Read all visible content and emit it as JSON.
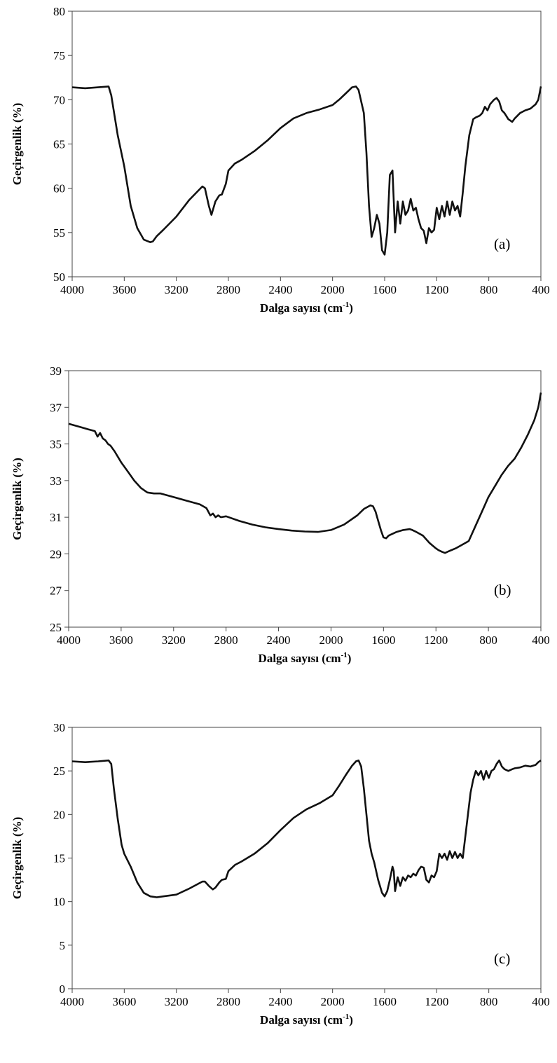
{
  "chart_data": [
    {
      "type": "line",
      "panel_label": "(a)",
      "xlabel": "Dalga sayısı (cm",
      "xlabel_sup": "-1",
      "xlabel_end": ")",
      "ylabel": "Geçirgenlik (%)",
      "xlim": [
        4000,
        400
      ],
      "ylim": [
        50,
        80
      ],
      "xticks": [
        4000,
        3600,
        3200,
        2800,
        2400,
        2000,
        1600,
        1200,
        800,
        400
      ],
      "yticks": [
        50,
        55,
        60,
        65,
        70,
        75,
        80
      ],
      "grid": false,
      "series": [
        {
          "color": "#111111",
          "x": [
            4000,
            3900,
            3800,
            3720,
            3700,
            3650,
            3600,
            3550,
            3500,
            3450,
            3400,
            3380,
            3350,
            3300,
            3200,
            3100,
            3000,
            2980,
            2950,
            2930,
            2900,
            2870,
            2850,
            2820,
            2800,
            2750,
            2700,
            2600,
            2500,
            2400,
            2300,
            2200,
            2100,
            2000,
            1950,
            1900,
            1850,
            1820,
            1800,
            1760,
            1740,
            1720,
            1700,
            1680,
            1660,
            1640,
            1620,
            1600,
            1580,
            1560,
            1540,
            1520,
            1500,
            1480,
            1460,
            1440,
            1420,
            1400,
            1380,
            1360,
            1340,
            1320,
            1300,
            1280,
            1260,
            1240,
            1220,
            1200,
            1180,
            1160,
            1140,
            1120,
            1100,
            1080,
            1060,
            1040,
            1020,
            1000,
            980,
            950,
            920,
            900,
            870,
            850,
            830,
            810,
            790,
            760,
            740,
            720,
            700,
            680,
            650,
            620,
            600,
            560,
            520,
            480,
            440,
            420,
            400
          ],
          "y": [
            71.4,
            71.3,
            71.4,
            71.5,
            70.5,
            66.0,
            62.5,
            58.0,
            55.5,
            54.2,
            53.9,
            54.0,
            54.6,
            55.3,
            56.8,
            58.7,
            60.2,
            60.0,
            58.0,
            57.0,
            58.5,
            59.2,
            59.3,
            60.5,
            62.0,
            62.8,
            63.2,
            64.2,
            65.4,
            66.8,
            67.9,
            68.5,
            68.9,
            69.4,
            70.0,
            70.7,
            71.4,
            71.5,
            71.1,
            68.5,
            64.0,
            58.0,
            54.5,
            55.5,
            57.0,
            56.0,
            53.0,
            52.5,
            55.0,
            61.5,
            62.0,
            55.0,
            58.5,
            56.0,
            58.5,
            57.0,
            57.5,
            58.8,
            57.5,
            57.8,
            56.5,
            55.5,
            55.2,
            53.8,
            55.5,
            55.0,
            55.3,
            57.8,
            56.5,
            58.0,
            56.8,
            58.5,
            57.0,
            58.5,
            57.5,
            58.0,
            56.8,
            59.5,
            62.5,
            66.0,
            67.8,
            68.0,
            68.2,
            68.5,
            69.2,
            68.8,
            69.5,
            70.0,
            70.2,
            69.8,
            68.8,
            68.5,
            67.8,
            67.5,
            67.9,
            68.5,
            68.8,
            69.0,
            69.5,
            70.0,
            71.5
          ]
        }
      ]
    },
    {
      "type": "line",
      "panel_label": "(b)",
      "xlabel": "Dalga sayısı (cm",
      "xlabel_sup": "-1",
      "xlabel_end": ")",
      "ylabel": "Geçirgenlik (%)",
      "xlim": [
        4000,
        400
      ],
      "ylim": [
        25,
        39
      ],
      "xticks": [
        4000,
        3600,
        3200,
        2800,
        2400,
        2000,
        1600,
        1200,
        800,
        400
      ],
      "yticks": [
        25,
        27,
        29,
        31,
        33,
        35,
        37,
        39
      ],
      "grid": false,
      "series": [
        {
          "color": "#111111",
          "x": [
            4000,
            3950,
            3900,
            3850,
            3800,
            3780,
            3760,
            3740,
            3720,
            3700,
            3680,
            3650,
            3600,
            3550,
            3500,
            3450,
            3400,
            3350,
            3300,
            3200,
            3100,
            3000,
            2950,
            2920,
            2900,
            2880,
            2860,
            2840,
            2800,
            2700,
            2600,
            2500,
            2400,
            2300,
            2200,
            2100,
            2000,
            1900,
            1800,
            1750,
            1700,
            1680,
            1660,
            1640,
            1620,
            1600,
            1580,
            1560,
            1500,
            1450,
            1400,
            1380,
            1350,
            1300,
            1250,
            1200,
            1180,
            1150,
            1130,
            1100,
            1050,
            1000,
            950,
            900,
            850,
            800,
            750,
            700,
            650,
            600,
            550,
            500,
            450,
            420,
            400
          ],
          "y": [
            36.1,
            36.0,
            35.9,
            35.8,
            35.7,
            35.4,
            35.6,
            35.3,
            35.2,
            35.0,
            34.9,
            34.6,
            34.0,
            33.5,
            33.0,
            32.6,
            32.35,
            32.3,
            32.3,
            32.1,
            31.9,
            31.7,
            31.5,
            31.1,
            31.2,
            31.0,
            31.1,
            31.0,
            31.05,
            30.8,
            30.6,
            30.45,
            30.35,
            30.27,
            30.22,
            30.2,
            30.3,
            30.6,
            31.1,
            31.45,
            31.65,
            31.6,
            31.3,
            30.8,
            30.3,
            29.9,
            29.85,
            30.0,
            30.2,
            30.3,
            30.35,
            30.3,
            30.2,
            30.0,
            29.6,
            29.3,
            29.2,
            29.1,
            29.05,
            29.15,
            29.3,
            29.5,
            29.7,
            30.5,
            31.3,
            32.1,
            32.7,
            33.3,
            33.8,
            34.2,
            34.8,
            35.5,
            36.3,
            37.0,
            37.8
          ]
        }
      ]
    },
    {
      "type": "line",
      "panel_label": "(c)",
      "xlabel": "Dalga sayısı (cm",
      "xlabel_sup": "-1",
      "xlabel_end": ")",
      "ylabel": "Geçirgenlik (%)",
      "xlim": [
        4000,
        400
      ],
      "ylim": [
        0,
        30
      ],
      "xticks": [
        4000,
        3600,
        3200,
        2800,
        2400,
        2000,
        1600,
        1200,
        800,
        400
      ],
      "yticks": [
        0,
        5,
        10,
        15,
        20,
        25,
        30
      ],
      "grid": false,
      "series": [
        {
          "color": "#111111",
          "x": [
            4000,
            3900,
            3800,
            3720,
            3700,
            3680,
            3650,
            3620,
            3600,
            3550,
            3500,
            3450,
            3400,
            3350,
            3300,
            3200,
            3100,
            3000,
            2980,
            2950,
            2920,
            2900,
            2870,
            2850,
            2820,
            2800,
            2750,
            2700,
            2600,
            2500,
            2400,
            2300,
            2200,
            2100,
            2000,
            1950,
            1900,
            1850,
            1820,
            1800,
            1780,
            1760,
            1740,
            1720,
            1700,
            1680,
            1650,
            1620,
            1600,
            1580,
            1560,
            1540,
            1530,
            1520,
            1500,
            1480,
            1460,
            1440,
            1420,
            1400,
            1380,
            1360,
            1340,
            1320,
            1300,
            1280,
            1260,
            1240,
            1220,
            1200,
            1180,
            1160,
            1140,
            1120,
            1100,
            1080,
            1060,
            1040,
            1020,
            1000,
            980,
            960,
            940,
            920,
            900,
            880,
            860,
            840,
            820,
            800,
            780,
            760,
            740,
            720,
            700,
            680,
            650,
            620,
            600,
            560,
            520,
            480,
            440,
            420,
            400
          ],
          "y": [
            26.1,
            26.0,
            26.1,
            26.2,
            25.8,
            23.0,
            19.5,
            16.5,
            15.5,
            14.0,
            12.2,
            11.0,
            10.6,
            10.5,
            10.6,
            10.8,
            11.5,
            12.3,
            12.3,
            11.8,
            11.4,
            11.6,
            12.2,
            12.5,
            12.6,
            13.5,
            14.2,
            14.6,
            15.5,
            16.7,
            18.2,
            19.6,
            20.6,
            21.3,
            22.2,
            23.3,
            24.5,
            25.6,
            26.1,
            26.2,
            25.5,
            23.0,
            20.0,
            17.0,
            15.5,
            14.5,
            12.5,
            11.0,
            10.6,
            11.2,
            12.5,
            14.0,
            13.5,
            11.2,
            12.8,
            11.8,
            12.8,
            12.4,
            13.0,
            12.8,
            13.2,
            13.0,
            13.6,
            14.0,
            13.9,
            12.5,
            12.2,
            13.0,
            12.8,
            13.5,
            15.5,
            15.0,
            15.5,
            14.8,
            15.8,
            15.0,
            15.7,
            15.0,
            15.5,
            15.0,
            17.5,
            20.0,
            22.5,
            24.0,
            25.0,
            24.5,
            25.0,
            24.0,
            25.0,
            24.2,
            25.0,
            25.2,
            25.8,
            26.2,
            25.5,
            25.2,
            25.0,
            25.2,
            25.3,
            25.4,
            25.6,
            25.5,
            25.7,
            26.0,
            26.2
          ]
        }
      ]
    }
  ]
}
